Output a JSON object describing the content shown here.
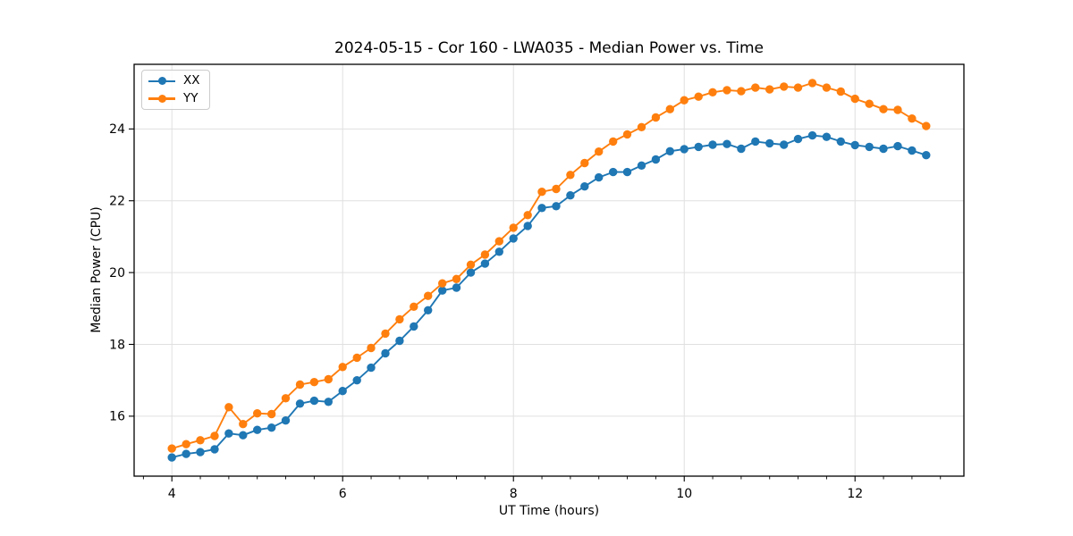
{
  "figure": {
    "title": "2024-05-15 - Cor 160 - LWA035 - Median Power vs. Time",
    "xlabel": "UT Time (hours)",
    "ylabel": "Median Power (CPU)"
  },
  "chart_data": {
    "type": "line",
    "title": "2024-05-15 - Cor 160 - LWA035 - Median Power vs. Time",
    "xlabel": "UT Time (hours)",
    "ylabel": "Median Power (CPU)",
    "xlim": [
      3.558,
      13.275
    ],
    "ylim": [
      14.33,
      25.8
    ],
    "x_ticks": [
      4,
      6,
      8,
      10,
      12
    ],
    "y_ticks": [
      16,
      18,
      20,
      22,
      24
    ],
    "x_minor_step": 0.3333,
    "grid": true,
    "grid_color": "#e0e0e0",
    "legend_position": "upper-left",
    "marker": "circle",
    "x": [
      4.0,
      4.167,
      4.333,
      4.5,
      4.667,
      4.833,
      5.0,
      5.167,
      5.333,
      5.5,
      5.667,
      5.833,
      6.0,
      6.167,
      6.333,
      6.5,
      6.667,
      6.833,
      7.0,
      7.167,
      7.333,
      7.5,
      7.667,
      7.833,
      8.0,
      8.167,
      8.333,
      8.5,
      8.667,
      8.833,
      9.0,
      9.167,
      9.333,
      9.5,
      9.667,
      9.833,
      10.0,
      10.167,
      10.333,
      10.5,
      10.667,
      10.833,
      11.0,
      11.167,
      11.333,
      11.5,
      11.667,
      11.833,
      12.0,
      12.167,
      12.333,
      12.5,
      12.667,
      12.833
    ],
    "series": [
      {
        "name": "XX",
        "color": "#1f77b4",
        "values": [
          14.85,
          14.95,
          15.0,
          15.08,
          15.52,
          15.47,
          15.62,
          15.68,
          15.88,
          16.35,
          16.43,
          16.4,
          16.7,
          17.0,
          17.35,
          17.75,
          18.1,
          18.5,
          18.95,
          19.5,
          19.58,
          20.0,
          20.25,
          20.58,
          20.95,
          21.3,
          21.8,
          21.85,
          22.15,
          22.4,
          22.65,
          22.8,
          22.8,
          22.98,
          23.15,
          23.38,
          23.44,
          23.5,
          23.56,
          23.58,
          23.45,
          23.65,
          23.6,
          23.56,
          23.72,
          23.82,
          23.78,
          23.65,
          23.55,
          23.5,
          23.45,
          23.52,
          23.4,
          23.27
        ]
      },
      {
        "name": "YY",
        "color": "#ff7f0e",
        "values": [
          15.1,
          15.22,
          15.33,
          15.45,
          16.25,
          15.78,
          16.08,
          16.06,
          16.5,
          16.88,
          16.95,
          17.03,
          17.37,
          17.63,
          17.9,
          18.3,
          18.7,
          19.05,
          19.35,
          19.7,
          19.82,
          20.22,
          20.5,
          20.87,
          21.25,
          21.6,
          22.25,
          22.33,
          22.72,
          23.05,
          23.37,
          23.65,
          23.85,
          24.05,
          24.32,
          24.55,
          24.8,
          24.9,
          25.02,
          25.08,
          25.05,
          25.15,
          25.1,
          25.18,
          25.15,
          25.28,
          25.15,
          25.04,
          24.84,
          24.7,
          24.55,
          24.53,
          24.29,
          24.08
        ]
      }
    ]
  }
}
